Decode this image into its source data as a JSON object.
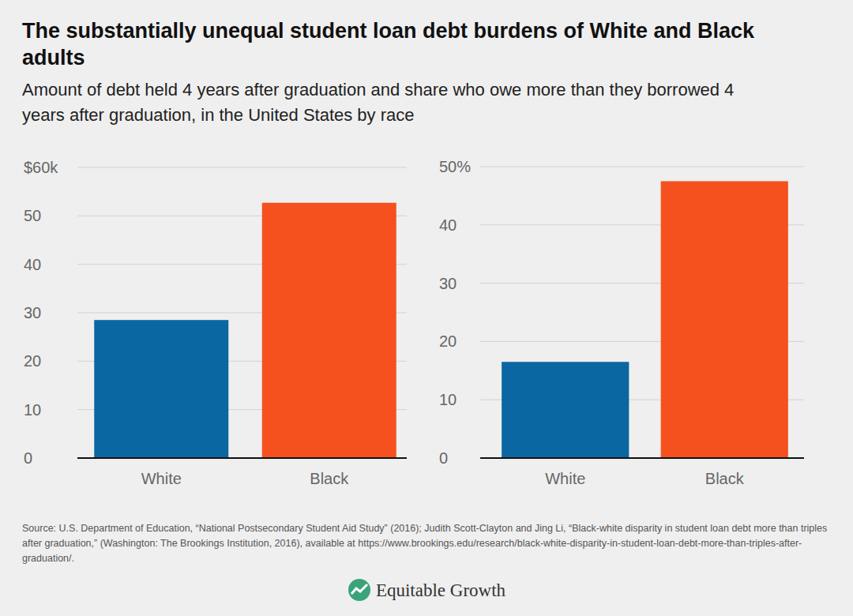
{
  "title": "The substantially unequal student loan debt burdens of White and Black adults",
  "subtitle": "Amount of debt held 4 years after graduation and share who owe more than they borrowed 4 years after graduation, in the United States by race",
  "source": "Source: U.S. Department of Education, “National Postsecondary Student Aid Study” (2016); Judith Scott-Clayton and Jing Li, “Black-white disparity in student loan debt more than triples after graduation,” (Washington: The Brookings Institution, 2016), available at https://www.brookings.edu/research/black-white-disparity-in-student-loan-debt-more-than-triples-after-graduation/.",
  "brand": "Equitable Growth",
  "chart_data": [
    {
      "type": "bar",
      "categories": [
        "White",
        "Black"
      ],
      "values": [
        28.5,
        52.7
      ],
      "colors": [
        "#0b67a1",
        "#f5511e"
      ],
      "ylim": [
        0,
        60
      ],
      "yticks": [
        0,
        10,
        20,
        30,
        40,
        50,
        {
          "value": 60,
          "label": "$60k"
        }
      ],
      "grid": true
    },
    {
      "type": "bar",
      "categories": [
        "White",
        "Black"
      ],
      "values": [
        16.5,
        47.5
      ],
      "colors": [
        "#0b67a1",
        "#f5511e"
      ],
      "ylim": [
        0,
        50
      ],
      "yticks": [
        0,
        10,
        20,
        30,
        40,
        {
          "value": 50,
          "label": "50%"
        }
      ],
      "grid": true
    }
  ]
}
